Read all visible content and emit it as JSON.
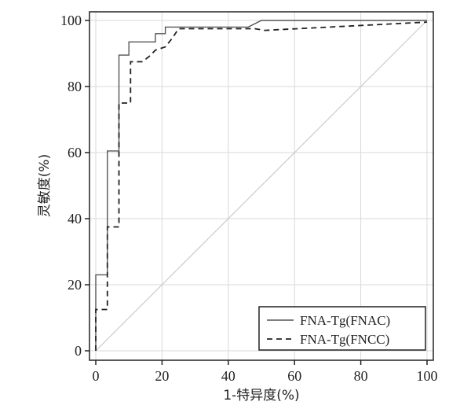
{
  "chart_data": {
    "type": "line",
    "title": "",
    "xlabel": "1-特异度(%)",
    "ylabel": "灵敏度(%)",
    "xlim": [
      0,
      100
    ],
    "ylim": [
      0,
      100
    ],
    "x_ticks": [
      "0",
      "20",
      "40",
      "60",
      "80",
      "100"
    ],
    "y_ticks": [
      "0",
      "20",
      "40",
      "60",
      "80",
      "100"
    ],
    "grid": true,
    "legend_position": "bottom-right",
    "diagonal_reference": true,
    "series": [
      {
        "name": "FNA-Tg(FNAC)",
        "style": "solid",
        "color": "#555555",
        "points": [
          [
            0,
            0
          ],
          [
            0,
            12
          ],
          [
            0,
            23
          ],
          [
            3.5,
            23
          ],
          [
            3.5,
            60.5
          ],
          [
            7,
            60.5
          ],
          [
            7,
            89.5
          ],
          [
            10,
            89.5
          ],
          [
            10,
            93.5
          ],
          [
            18,
            93.5
          ],
          [
            18,
            96
          ],
          [
            21,
            96
          ],
          [
            21,
            98
          ],
          [
            46,
            98
          ],
          [
            50,
            100
          ],
          [
            100,
            100
          ]
        ]
      },
      {
        "name": "FNA-Tg(FNCC)",
        "style": "dashed",
        "color": "#222222",
        "points": [
          [
            0,
            0
          ],
          [
            0,
            12.5
          ],
          [
            3.5,
            12.5
          ],
          [
            3.5,
            37.5
          ],
          [
            7,
            37.5
          ],
          [
            7,
            75
          ],
          [
            10.5,
            75
          ],
          [
            10.5,
            87.5
          ],
          [
            14,
            87.5
          ],
          [
            16,
            89
          ],
          [
            18,
            91
          ],
          [
            21,
            92
          ],
          [
            23,
            94.5
          ],
          [
            25,
            97.5
          ],
          [
            48,
            97.5
          ],
          [
            51,
            97
          ],
          [
            100,
            99.5
          ]
        ]
      },
      {
        "name": "",
        "style": "reference",
        "color": "#cccccc",
        "points": [
          [
            0,
            0
          ],
          [
            100,
            100
          ]
        ]
      }
    ]
  }
}
